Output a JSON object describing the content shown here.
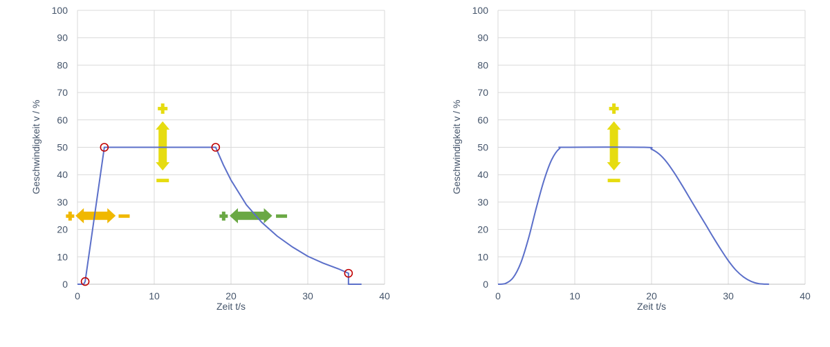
{
  "chart_data": [
    {
      "type": "line",
      "title": "",
      "xlabel": "Zeit t/s",
      "ylabel": "Geschwindigkeit v / %",
      "xlim": [
        0,
        40
      ],
      "ylim": [
        0,
        100
      ],
      "x_ticks": [
        0,
        10,
        20,
        30,
        40
      ],
      "y_ticks": [
        0,
        10,
        20,
        30,
        40,
        50,
        60,
        70,
        80,
        90,
        100
      ],
      "grid": true,
      "line_color": "#5b6fc9",
      "series": [
        {
          "points": [
            [
              0,
              0
            ],
            [
              0.8,
              0
            ],
            [
              1,
              1
            ],
            [
              3.5,
              50
            ],
            [
              18,
              50
            ],
            [
              19,
              43.6
            ],
            [
              20,
              38
            ],
            [
              22,
              29
            ],
            [
              24,
              22.6
            ],
            [
              26,
              17.6
            ],
            [
              28,
              13.6
            ],
            [
              30,
              10.2
            ],
            [
              32,
              7.7
            ],
            [
              34,
              5.6
            ],
            [
              35.3,
              4
            ],
            [
              35.3,
              0
            ],
            [
              37,
              0
            ]
          ]
        }
      ],
      "markers": {
        "color": "#c00000",
        "points": [
          [
            1,
            1
          ],
          [
            3.5,
            50
          ],
          [
            18,
            50
          ],
          [
            35.3,
            4
          ]
        ]
      },
      "annotations": [
        {
          "kind": "horizontal-double-arrow",
          "color": "#f0b800",
          "y": 25,
          "x_from": -1.5,
          "x_to": 6.8,
          "plus_side": "left",
          "minus_side": "right"
        },
        {
          "kind": "vertical-double-arrow",
          "color": "#e6dc10",
          "x": 11.1,
          "y_from": 38,
          "y_to": 64,
          "plus_side": "top",
          "minus_side": "bottom"
        },
        {
          "kind": "horizontal-double-arrow",
          "color": "#6aa844",
          "y": 25,
          "x_from": 18.5,
          "x_to": 27.3,
          "plus_side": "left",
          "minus_side": "right"
        }
      ]
    },
    {
      "type": "line",
      "title": "",
      "xlabel": "Zeit t/s",
      "ylabel": "Geschwindigkeit v / %",
      "xlim": [
        0,
        40
      ],
      "ylim": [
        0,
        100
      ],
      "x_ticks": [
        0,
        10,
        20,
        30,
        40
      ],
      "y_ticks": [
        0,
        10,
        20,
        30,
        40,
        50,
        60,
        70,
        80,
        90,
        100
      ],
      "grid": true,
      "line_color": "#5b6fc9",
      "series": [
        {
          "points": [
            [
              0,
              0
            ],
            [
              1,
              0.3
            ],
            [
              2,
              2.5
            ],
            [
              3,
              8
            ],
            [
              4,
              17
            ],
            [
              5,
              28
            ],
            [
              6,
              38
            ],
            [
              7,
              45.5
            ],
            [
              8,
              49.5
            ],
            [
              9,
              50
            ],
            [
              19,
              50
            ],
            [
              20,
              49.3
            ],
            [
              21,
              47.5
            ],
            [
              22,
              44.5
            ],
            [
              23,
              40.5
            ],
            [
              24,
              36
            ],
            [
              25,
              31.3
            ],
            [
              26,
              26.6
            ],
            [
              27,
              22
            ],
            [
              28,
              17.3
            ],
            [
              29,
              12.8
            ],
            [
              30,
              8.6
            ],
            [
              31,
              5.1
            ],
            [
              32,
              2.6
            ],
            [
              33,
              1
            ],
            [
              34,
              0.2
            ],
            [
              35.3,
              0
            ]
          ]
        }
      ],
      "annotations": [
        {
          "kind": "vertical-double-arrow",
          "color": "#e6dc10",
          "x": 15.1,
          "y_from": 38,
          "y_to": 64,
          "plus_side": "top",
          "minus_side": "bottom"
        }
      ]
    }
  ]
}
